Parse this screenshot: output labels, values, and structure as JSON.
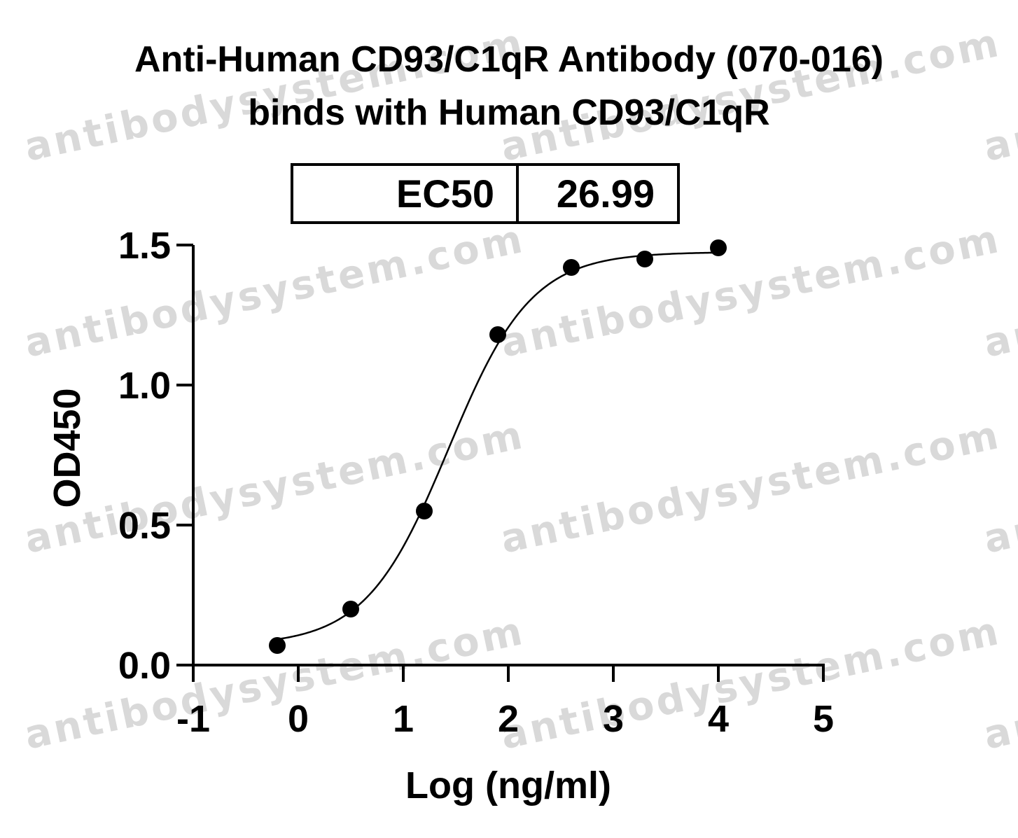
{
  "watermark": "antibodysystem.com",
  "chart_data": {
    "type": "scatter",
    "title_lines": [
      "Anti-Human CD93/C1qR Antibody (070-016)",
      "binds with Human CD93/C1qR"
    ],
    "xlabel": "Log (ng/ml)",
    "ylabel": "OD450",
    "xlim": [
      -1,
      5
    ],
    "ylim": [
      0,
      1.5
    ],
    "xticks": [
      "-1",
      "0",
      "1",
      "2",
      "3",
      "4",
      "5"
    ],
    "yticks": [
      "0.0",
      "0.5",
      "1.0",
      "1.5"
    ],
    "grid": false,
    "ec50_table": {
      "label": "EC50",
      "value": "26.99"
    },
    "points": {
      "x": [
        -0.2,
        0.5,
        1.2,
        1.9,
        2.6,
        3.3,
        4.0
      ],
      "y": [
        0.07,
        0.2,
        0.55,
        1.18,
        1.42,
        1.45,
        1.49
      ]
    },
    "fit": {
      "model": "4PL",
      "bottom": 0.07,
      "top": 1.475,
      "logEC50": 1.431,
      "hill": 1.1
    },
    "colors": {
      "points": "#000000",
      "curve": "#000000",
      "axes": "#000000",
      "watermark": "#d9d9d9"
    }
  }
}
